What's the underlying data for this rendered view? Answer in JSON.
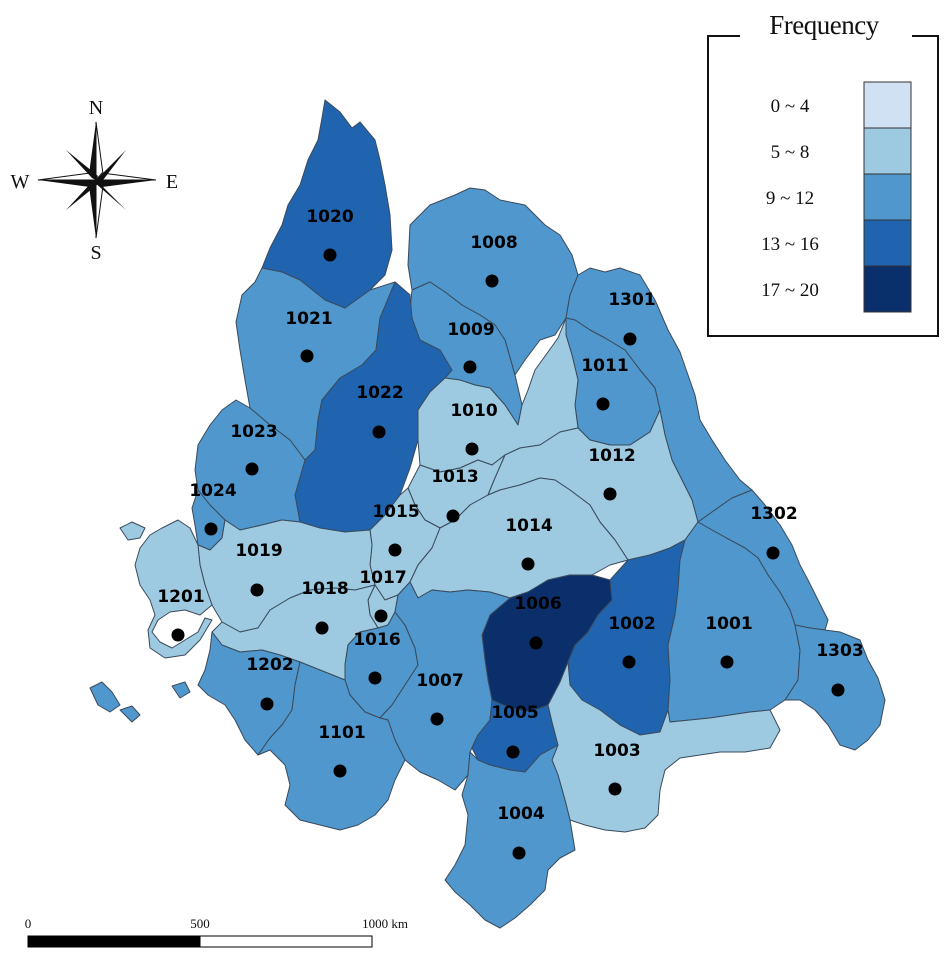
{
  "legend": {
    "title": "Frequency",
    "classes": [
      {
        "label": "0 ~ 4",
        "color": "#cfe1f2"
      },
      {
        "label": "5 ~ 8",
        "color": "#9ecae1"
      },
      {
        "label": "9 ~ 12",
        "color": "#4f97cc"
      },
      {
        "label": "13 ~ 16",
        "color": "#2064b0"
      },
      {
        "label": "17 ~ 20",
        "color": "#0b2f6b"
      }
    ]
  },
  "compass": {
    "north": "N",
    "south": "S",
    "east": "E",
    "west": "W"
  },
  "scale_bar": {
    "ticks": [
      "0",
      "500",
      "1000 km"
    ]
  },
  "regions": [
    {
      "id": "1020",
      "class": 3
    },
    {
      "id": "1021",
      "class": 2
    },
    {
      "id": "1008",
      "class": 2
    },
    {
      "id": "1301",
      "class": 2
    },
    {
      "id": "1009",
      "class": 2
    },
    {
      "id": "1011",
      "class": 2
    },
    {
      "id": "1022",
      "class": 3
    },
    {
      "id": "1010",
      "class": 1
    },
    {
      "id": "1023",
      "class": 2
    },
    {
      "id": "1013",
      "class": 1
    },
    {
      "id": "1012",
      "class": 1
    },
    {
      "id": "1024",
      "class": 2
    },
    {
      "id": "1015",
      "class": 1
    },
    {
      "id": "1014",
      "class": 1
    },
    {
      "id": "1302",
      "class": 2
    },
    {
      "id": "1019",
      "class": 1
    },
    {
      "id": "1017",
      "class": 1
    },
    {
      "id": "1201",
      "class": 1
    },
    {
      "id": "1018",
      "class": 1
    },
    {
      "id": "1006",
      "class": 4
    },
    {
      "id": "1002",
      "class": 3
    },
    {
      "id": "1001",
      "class": 2
    },
    {
      "id": "1016",
      "class": 2
    },
    {
      "id": "1303",
      "class": 2
    },
    {
      "id": "1202",
      "class": 2
    },
    {
      "id": "1007",
      "class": 2
    },
    {
      "id": "1005",
      "class": 3
    },
    {
      "id": "1101",
      "class": 2
    },
    {
      "id": "1003",
      "class": 1
    },
    {
      "id": "1004",
      "class": 2
    }
  ]
}
